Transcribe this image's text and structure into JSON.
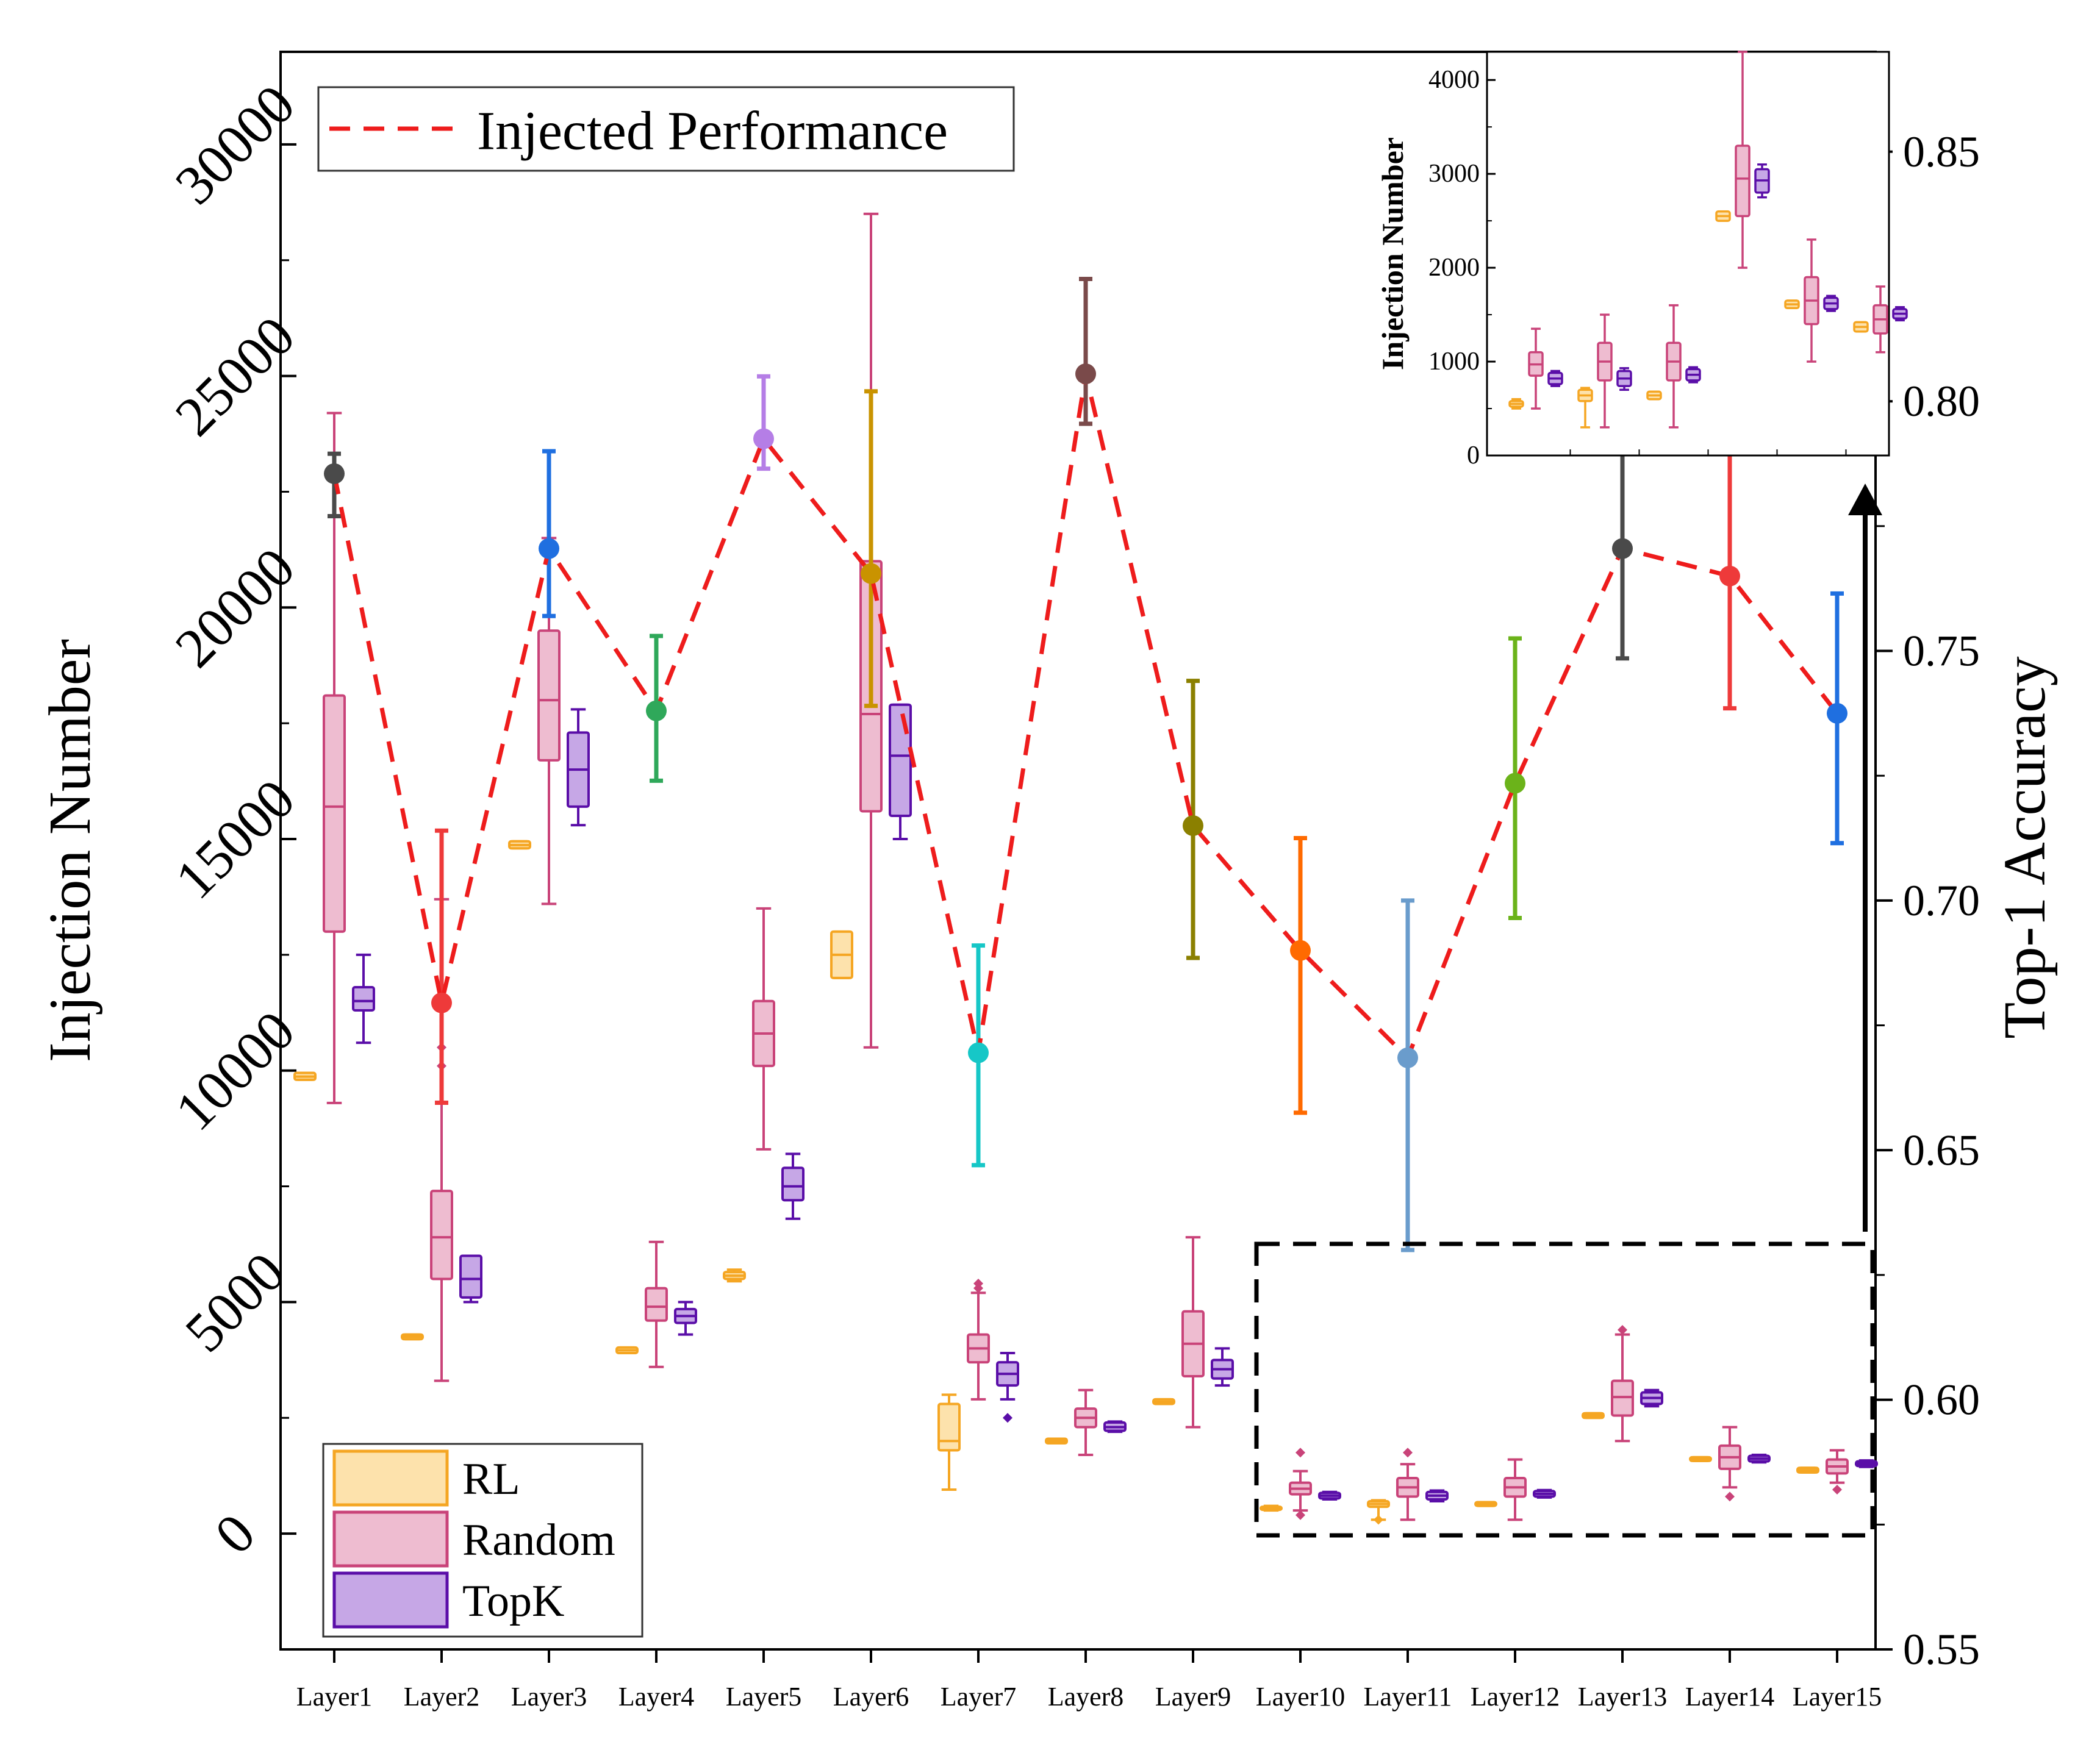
{
  "chart_data": {
    "type": "box",
    "categories": [
      "Layer1",
      "Layer2",
      "Layer3",
      "Layer4",
      "Layer5",
      "Layer6",
      "Layer7",
      "Layer8",
      "Layer9",
      "Layer10",
      "Layer11",
      "Layer12",
      "Layer13",
      "Layer14",
      "Layer15"
    ],
    "ylabel": "Injection Number",
    "y2label": "Top-1 Accuracy",
    "ylim": [
      -2500,
      32000
    ],
    "y2lim": [
      0.55,
      0.87
    ],
    "y_ticks": [
      "0",
      "5000",
      "10000",
      "15000",
      "20000",
      "25000",
      "30000"
    ],
    "y2_ticks": [
      "0.55",
      "0.60",
      "0.65",
      "0.70",
      "0.75",
      "0.80",
      "0.85"
    ],
    "legend_top": {
      "position": "top-left",
      "entries": [
        "Injected Performance"
      ]
    },
    "legend_bottom": {
      "position": "bottom-left",
      "entries": [
        "RL",
        "Random",
        "TopK"
      ]
    },
    "colors": {
      "rl_edge": "#f5a623",
      "rl_fill": "#fde2ac",
      "random_edge": "#c94379",
      "random_fill": "#eebcd0",
      "topk_edge": "#5a0ea8",
      "topk_fill": "#c6a7e6",
      "performance_line": "#ee1c1c"
    },
    "box_series": [
      {
        "name": "RL",
        "boxes": [
          {
            "q1": 9800,
            "q3": 9950,
            "median": 9870,
            "whislo": 9800,
            "whishi": 9950
          },
          {
            "q1": 4200,
            "q3": 4300,
            "median": 4250,
            "whislo": 4200,
            "whishi": 4300
          },
          {
            "q1": 14800,
            "q3": 14950,
            "median": 14870,
            "whislo": 14800,
            "whishi": 14950
          },
          {
            "q1": 3900,
            "q3": 4020,
            "median": 3960,
            "whislo": 3900,
            "whishi": 4020
          },
          {
            "q1": 5500,
            "q3": 5650,
            "median": 5570,
            "whislo": 5450,
            "whishi": 5700
          },
          {
            "q1": 12000,
            "q3": 13000,
            "median": 12500,
            "whislo": 12000,
            "whishi": 13000
          },
          {
            "q1": 1800,
            "q3": 2800,
            "median": 2000,
            "whislo": 950,
            "whishi": 3000
          },
          {
            "q1": 1950,
            "q3": 2050,
            "median": 2000,
            "whislo": 1950,
            "whishi": 2050
          },
          {
            "q1": 2800,
            "q3": 2900,
            "median": 2850,
            "whislo": 2800,
            "whishi": 2900
          },
          {
            "q1": 520,
            "q3": 580,
            "median": 550,
            "whislo": 500,
            "whishi": 600
          },
          {
            "q1": 580,
            "q3": 700,
            "median": 640,
            "whislo": 300,
            "whishi": 720
          },
          {
            "q1": 600,
            "q3": 680,
            "median": 640,
            "whislo": 600,
            "whishi": 680
          },
          {
            "q1": 2500,
            "q3": 2600,
            "median": 2550,
            "whislo": 2500,
            "whishi": 2600
          },
          {
            "q1": 1570,
            "q3": 1650,
            "median": 1610,
            "whislo": 1570,
            "whishi": 1650
          },
          {
            "q1": 1320,
            "q3": 1420,
            "median": 1370,
            "whislo": 1320,
            "whishi": 1420
          }
        ]
      },
      {
        "name": "Random",
        "boxes": [
          {
            "q1": 13000,
            "q3": 18100,
            "median": 15700,
            "whislo": 9300,
            "whishi": 24200
          },
          {
            "q1": 5500,
            "q3": 7400,
            "median": 6400,
            "whislo": 3300,
            "whishi": 13700
          },
          {
            "q1": 16700,
            "q3": 19500,
            "median": 18000,
            "whislo": 13600,
            "whishi": 21500
          },
          {
            "q1": 4600,
            "q3": 5300,
            "median": 4900,
            "whislo": 3600,
            "whishi": 6300
          },
          {
            "q1": 10100,
            "q3": 11500,
            "median": 10800,
            "whislo": 8300,
            "whishi": 13500
          },
          {
            "q1": 15600,
            "q3": 21000,
            "median": 17700,
            "whislo": 10500,
            "whishi": 28500
          },
          {
            "q1": 3700,
            "q3": 4300,
            "median": 4000,
            "whislo": 2900,
            "whishi": 5200
          },
          {
            "q1": 2300,
            "q3": 2700,
            "median": 2500,
            "whislo": 1700,
            "whishi": 3100
          },
          {
            "q1": 3400,
            "q3": 4800,
            "median": 4100,
            "whislo": 2300,
            "whishi": 6400
          },
          {
            "q1": 850,
            "q3": 1100,
            "median": 970,
            "whislo": 500,
            "whishi": 1350
          },
          {
            "q1": 800,
            "q3": 1200,
            "median": 1000,
            "whislo": 300,
            "whishi": 1500
          },
          {
            "q1": 800,
            "q3": 1200,
            "median": 1000,
            "whislo": 300,
            "whishi": 1600
          },
          {
            "q1": 2550,
            "q3": 3300,
            "median": 2950,
            "whislo": 2000,
            "whishi": 4300
          },
          {
            "q1": 1400,
            "q3": 1900,
            "median": 1650,
            "whislo": 1000,
            "whishi": 2300
          },
          {
            "q1": 1300,
            "q3": 1600,
            "median": 1450,
            "whislo": 1100,
            "whishi": 1800
          }
        ]
      },
      {
        "name": "TopK",
        "boxes": [
          {
            "q1": 11300,
            "q3": 11800,
            "median": 11500,
            "whislo": 10600,
            "whishi": 12500
          },
          {
            "q1": 5100,
            "q3": 6000,
            "median": 5500,
            "whislo": 5000,
            "whishi": 6000
          },
          {
            "q1": 15700,
            "q3": 17300,
            "median": 16500,
            "whislo": 15300,
            "whishi": 17800
          },
          {
            "q1": 4550,
            "q3": 4850,
            "median": 4700,
            "whislo": 4300,
            "whishi": 5000
          },
          {
            "q1": 7200,
            "q3": 7900,
            "median": 7500,
            "whislo": 6800,
            "whishi": 8200
          },
          {
            "q1": 15500,
            "q3": 17900,
            "median": 16800,
            "whislo": 15000,
            "whishi": 17900
          },
          {
            "q1": 3200,
            "q3": 3700,
            "median": 3450,
            "whislo": 2900,
            "whishi": 3900
          },
          {
            "q1": 2220,
            "q3": 2400,
            "median": 2300,
            "whislo": 2200,
            "whishi": 2420
          },
          {
            "q1": 3350,
            "q3": 3750,
            "median": 3550,
            "whislo": 3200,
            "whishi": 4000
          },
          {
            "q1": 760,
            "q3": 880,
            "median": 820,
            "whislo": 740,
            "whishi": 900
          },
          {
            "q1": 740,
            "q3": 900,
            "median": 820,
            "whislo": 700,
            "whishi": 930
          },
          {
            "q1": 800,
            "q3": 920,
            "median": 860,
            "whislo": 780,
            "whishi": 940
          },
          {
            "q1": 2800,
            "q3": 3050,
            "median": 2930,
            "whislo": 2750,
            "whishi": 3100
          },
          {
            "q1": 1560,
            "q3": 1680,
            "median": 1620,
            "whislo": 1540,
            "whishi": 1700
          },
          {
            "q1": 1460,
            "q3": 1560,
            "median": 1510,
            "whislo": 1440,
            "whishi": 1580
          }
        ]
      }
    ],
    "outliers": [
      {
        "series": "Random",
        "category": "Layer2",
        "values": [
          10500,
          10100
        ]
      },
      {
        "series": "Random",
        "category": "Layer7",
        "values": [
          5300,
          5400
        ]
      },
      {
        "series": "TopK",
        "category": "Layer7",
        "values": [
          2500
        ]
      },
      {
        "series": "Random",
        "category": "Layer10",
        "values": [
          1750,
          400
        ]
      },
      {
        "series": "Random",
        "category": "Layer11",
        "values": [
          1750
        ]
      },
      {
        "series": "RL",
        "category": "Layer11",
        "values": [
          300
        ]
      },
      {
        "series": "Random",
        "category": "Layer13",
        "values": [
          4400
        ]
      },
      {
        "series": "Random",
        "category": "Layer14",
        "values": [
          800
        ]
      },
      {
        "series": "Random",
        "category": "Layer15",
        "values": [
          950
        ]
      }
    ],
    "performance_series": {
      "name": "Injected Performance",
      "axis": "right",
      "points": [
        {
          "category": "Layer1",
          "mean": 0.7855,
          "low": 0.777,
          "high": 0.7895,
          "color": "#4a4a4a"
        },
        {
          "category": "Layer2",
          "mean": 0.6795,
          "low": 0.6595,
          "high": 0.714,
          "color": "#ee3a3a"
        },
        {
          "category": "Layer3",
          "mean": 0.7705,
          "low": 0.757,
          "high": 0.79,
          "color": "#1f6fe0"
        },
        {
          "category": "Layer4",
          "mean": 0.738,
          "low": 0.724,
          "high": 0.753,
          "color": "#2fa85a"
        },
        {
          "category": "Layer5",
          "mean": 0.7925,
          "low": 0.7865,
          "high": 0.805,
          "color": "#b57ee6"
        },
        {
          "category": "Layer6",
          "mean": 0.7655,
          "low": 0.739,
          "high": 0.802,
          "color": "#c99300"
        },
        {
          "category": "Layer7",
          "mean": 0.6695,
          "low": 0.647,
          "high": 0.691,
          "color": "#16c7c7"
        },
        {
          "category": "Layer8",
          "mean": 0.8055,
          "low": 0.7955,
          "high": 0.8245,
          "color": "#7a4a4a"
        },
        {
          "category": "Layer9",
          "mean": 0.715,
          "low": 0.6885,
          "high": 0.744,
          "color": "#8b8000"
        },
        {
          "category": "Layer10",
          "mean": 0.69,
          "low": 0.6575,
          "high": 0.7125,
          "color": "#ff6a00"
        },
        {
          "category": "Layer11",
          "mean": 0.6685,
          "low": 0.63,
          "high": 0.7,
          "color": "#6a9ccc"
        },
        {
          "category": "Layer12",
          "mean": 0.7235,
          "low": 0.6965,
          "high": 0.7525,
          "color": "#6bb31a"
        },
        {
          "category": "Layer13",
          "mean": 0.7705,
          "low": 0.7485,
          "high": 0.7925,
          "color": "#4a4a4a"
        },
        {
          "category": "Layer14",
          "mean": 0.765,
          "low": 0.7385,
          "high": 0.793,
          "color": "#ee3a3a"
        },
        {
          "category": "Layer15",
          "mean": 0.7375,
          "low": 0.7115,
          "high": 0.7615,
          "color": "#1f6fe0"
        }
      ]
    },
    "inset": {
      "ylabel": "Injection Number",
      "ylim": [
        0,
        4300
      ],
      "y_ticks": [
        "0",
        "1000",
        "2000",
        "3000",
        "4000"
      ],
      "categories": [
        "Layer10",
        "Layer11",
        "Layer12",
        "Layer13",
        "Layer14",
        "Layer15"
      ]
    }
  }
}
